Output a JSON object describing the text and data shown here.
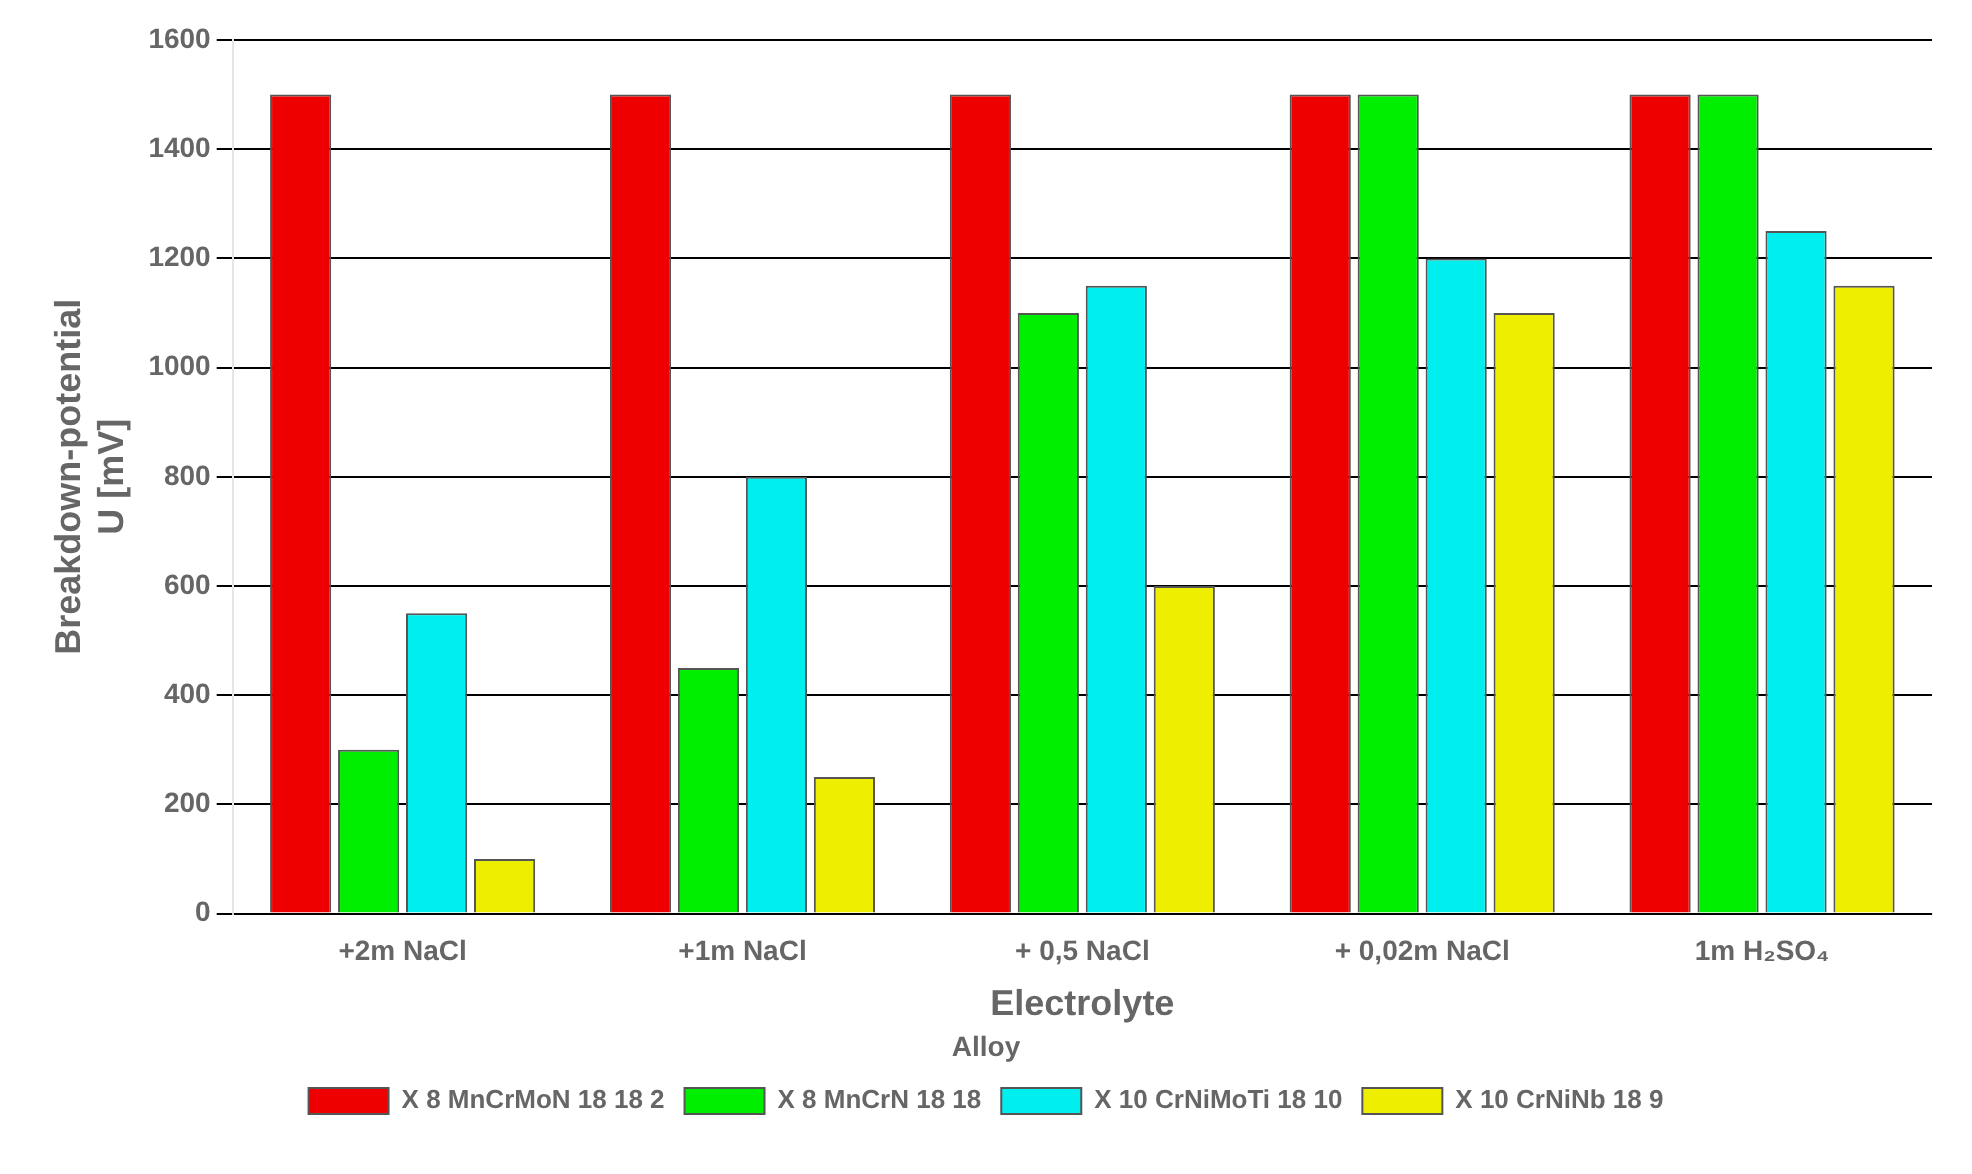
{
  "chart_data": {
    "type": "bar",
    "categories": [
      "+2m NaCl",
      "+1m NaCl",
      "+ 0,5 NaCl",
      "+ 0,02m NaCl",
      "1m H₂SO₄"
    ],
    "series": [
      {
        "name": "X 8 MnCrMoN 18 18 2",
        "color": "#ee0000",
        "values": [
          1500,
          1500,
          1500,
          1500,
          1500
        ]
      },
      {
        "name": "X 8 MnCrN 18 18",
        "color": "#00ee00",
        "values": [
          300,
          450,
          1100,
          1500,
          1500
        ]
      },
      {
        "name": "X 10 CrNiMoTi 18 10",
        "color": "#00eeee",
        "values": [
          550,
          800,
          1150,
          1200,
          1250
        ]
      },
      {
        "name": "X 10 CrNiNb 18 9",
        "color": "#eeee00",
        "values": [
          100,
          250,
          600,
          1100,
          1150
        ]
      }
    ],
    "xlabel": "Electrolyte",
    "ylabel": "Breakdown-potential\nU [mV]",
    "legend_title": "Alloy",
    "ylim": [
      0,
      1600
    ],
    "yticks": [
      0,
      200,
      400,
      600,
      800,
      1000,
      1200,
      1400,
      1600
    ],
    "grid": "y",
    "legend": "bottom"
  }
}
